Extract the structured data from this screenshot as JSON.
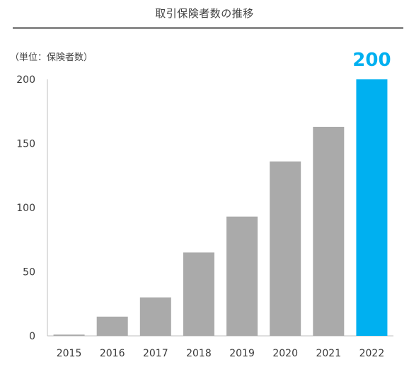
{
  "chart_data": {
    "type": "bar",
    "title": "取引保険者数の推移",
    "unit_label": "（単位：保険者数）",
    "categories": [
      "2015",
      "2016",
      "2017",
      "2018",
      "2019",
      "2020",
      "2021",
      "2022"
    ],
    "values": [
      1,
      15,
      30,
      65,
      93,
      136,
      163,
      200
    ],
    "yticks": [
      "0",
      "50",
      "100",
      "150",
      "200"
    ],
    "ylim": [
      0,
      200
    ],
    "highlight_label": "200",
    "grid": false,
    "legend": "none",
    "colors": {
      "bar": "#aaaaaa",
      "highlight": "#00b0f0",
      "axis": "#bfbfbf"
    }
  }
}
